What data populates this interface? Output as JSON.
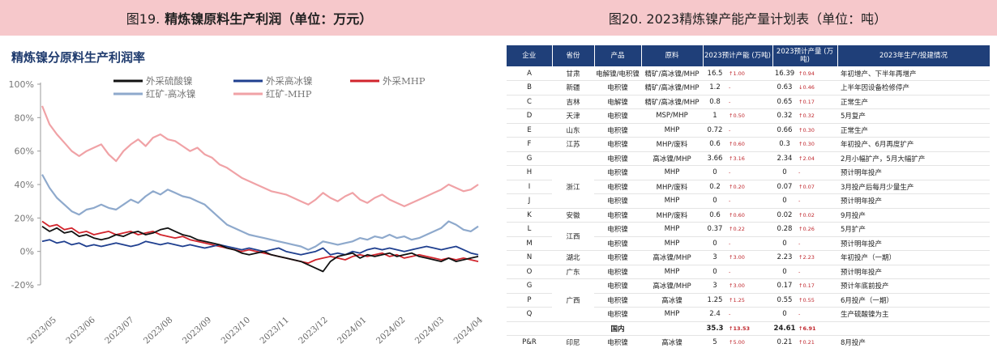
{
  "header_left": {
    "prefix": "图19.",
    "title": "精炼镍原料生产利润（单位：万元）"
  },
  "header_right": {
    "title": "图20.  2023精炼镍产能产量计划表（单位：吨）"
  },
  "chart_data": {
    "type": "line",
    "title": "精炼镍分原料生产利润率",
    "x_ticks": [
      "2023/05",
      "2023/06",
      "2023/07",
      "2023/08",
      "2023/09",
      "2023/10",
      "2023/11",
      "2023/12",
      "2024/01",
      "2024/02",
      "2024/03",
      "2024/04"
    ],
    "y_ticks": [
      "100%",
      "80%",
      "60%",
      "40%",
      "20%",
      "0%",
      "-20%"
    ],
    "ylim": [
      -20,
      100
    ],
    "grid": false,
    "legend_position": "top",
    "series": [
      {
        "name": "外采硫酸镍",
        "color": "#111111",
        "values": [
          15,
          12,
          14,
          11,
          12,
          9,
          10,
          8,
          7,
          8,
          10,
          9,
          11,
          12,
          10,
          11,
          13,
          14,
          12,
          10,
          9,
          7,
          6,
          5,
          4,
          2,
          1,
          -1,
          -2,
          -1,
          0,
          -2,
          -3,
          -4,
          -5,
          -6,
          -8,
          -10,
          -12,
          -6,
          -3,
          -2,
          -1,
          -4,
          -2,
          -3,
          -2,
          -1,
          -3,
          -2,
          -1,
          -3,
          -4,
          -5,
          -6,
          -4,
          -6,
          -5,
          -4,
          -3
        ]
      },
      {
        "name": "外采高冰镍",
        "color": "#1f3f8f",
        "values": [
          6,
          7,
          5,
          6,
          4,
          5,
          3,
          4,
          3,
          4,
          5,
          4,
          3,
          4,
          6,
          5,
          4,
          5,
          4,
          3,
          4,
          3,
          2,
          3,
          4,
          3,
          2,
          1,
          2,
          1,
          0,
          1,
          2,
          0,
          -1,
          -2,
          -1,
          0,
          2,
          -2,
          -1,
          -2,
          0,
          -1,
          1,
          2,
          1,
          2,
          1,
          0,
          1,
          2,
          3,
          2,
          1,
          2,
          3,
          1,
          -1,
          -2
        ]
      },
      {
        "name": "外采MHP",
        "color": "#d1242c",
        "values": [
          18,
          15,
          16,
          13,
          14,
          11,
          12,
          10,
          11,
          12,
          10,
          11,
          12,
          10,
          11,
          12,
          10,
          9,
          8,
          9,
          7,
          6,
          5,
          4,
          3,
          2,
          1,
          0,
          1,
          0,
          -1,
          -2,
          -3,
          -4,
          -5,
          -6,
          -7,
          -5,
          -4,
          -3,
          -4,
          -5,
          -3,
          -2,
          -3,
          -2,
          -1,
          -3,
          -2,
          -4,
          -3,
          -2,
          -3,
          -4,
          -5,
          -4,
          -5,
          -4,
          -5,
          -6
        ]
      },
      {
        "name": "红矿-高冰镍",
        "color": "#8ea9cc",
        "values": [
          46,
          38,
          32,
          28,
          24,
          22,
          25,
          26,
          28,
          26,
          25,
          28,
          31,
          29,
          33,
          36,
          34,
          37,
          35,
          33,
          32,
          30,
          28,
          24,
          20,
          16,
          14,
          12,
          10,
          9,
          8,
          7,
          6,
          5,
          4,
          3,
          1,
          3,
          6,
          5,
          4,
          5,
          6,
          8,
          7,
          9,
          8,
          10,
          8,
          9,
          7,
          8,
          10,
          12,
          14,
          18,
          16,
          13,
          12,
          15
        ]
      },
      {
        "name": "红矿-MHP",
        "color": "#f0a2a6",
        "values": [
          87,
          76,
          70,
          65,
          60,
          57,
          60,
          62,
          64,
          58,
          54,
          60,
          64,
          67,
          63,
          68,
          70,
          67,
          66,
          63,
          60,
          62,
          58,
          56,
          52,
          50,
          47,
          44,
          42,
          40,
          38,
          36,
          35,
          34,
          32,
          30,
          28,
          31,
          35,
          32,
          30,
          33,
          35,
          31,
          29,
          32,
          34,
          31,
          29,
          27,
          29,
          31,
          33,
          35,
          37,
          40,
          38,
          36,
          37,
          40
        ]
      }
    ]
  },
  "table": {
    "columns": [
      "企业",
      "省份",
      "产品",
      "原料",
      "2023预计产能\n(万吨)",
      "2023预计产量\n(万吨)",
      "2023年生产/投建情况"
    ],
    "rows": [
      {
        "company": "A",
        "province": "甘肃",
        "product": "电解镍/电积镍",
        "material": "精矿/高冰镍/MHP",
        "capacity": "16.5",
        "cap_chg": "↑1.00",
        "output": "16.39",
        "out_chg": "↑0.94",
        "status": "年初增产、下半年再增产"
      },
      {
        "company": "B",
        "province": "新疆",
        "product": "电积镍",
        "material": "精矿/高冰镍/MHP",
        "capacity": "1.2",
        "cap_chg": "-",
        "output": "0.63",
        "out_chg": "↓0.46",
        "status": "上半年因设备检修停产"
      },
      {
        "company": "C",
        "province": "吉林",
        "product": "电解镍",
        "material": "精矿/高冰镍/MHP",
        "capacity": "0.8",
        "cap_chg": "-",
        "output": "0.65",
        "out_chg": "↑0.17",
        "status": "正常生产"
      },
      {
        "company": "D",
        "province": "天津",
        "product": "电积镍",
        "material": "MSP/MHP",
        "capacity": "1",
        "cap_chg": "↑0.50",
        "output": "0.32",
        "out_chg": "↑0.32",
        "status": "5月复产"
      },
      {
        "company": "E",
        "province": "山东",
        "product": "电积镍",
        "material": "MHP",
        "capacity": "0.72",
        "cap_chg": "-",
        "output": "0.66",
        "out_chg": "↑0.30",
        "status": "正常生产"
      },
      {
        "company": "F",
        "province": "江苏",
        "product": "电积镍",
        "material": "MHP/废料",
        "capacity": "0.6",
        "cap_chg": "↑0.60",
        "output": "0.3",
        "out_chg": "↑0.30",
        "status": "年初投产、6月再度扩产"
      },
      {
        "company": "G",
        "province": "",
        "product": "电积镍",
        "material": "高冰镍/MHP",
        "capacity": "3.66",
        "cap_chg": "↑3.16",
        "output": "2.34",
        "out_chg": "↑2.04",
        "status": "2月小幅扩产，5月大幅扩产"
      },
      {
        "company": "H",
        "province": "浙江",
        "product": "电积镍",
        "material": "MHP",
        "capacity": "0",
        "cap_chg": "-",
        "output": "0",
        "out_chg": "-",
        "status": "预计明年投产"
      },
      {
        "company": "I",
        "province": "",
        "product": "电积镍",
        "material": "MHP/废料",
        "capacity": "0.2",
        "cap_chg": "↑0.20",
        "output": "0.07",
        "out_chg": "↑0.07",
        "status": "3月投产后每月少量生产"
      },
      {
        "company": "J",
        "province": "",
        "product": "电积镍",
        "material": "MHP",
        "capacity": "0",
        "cap_chg": "-",
        "output": "0",
        "out_chg": "-",
        "status": "预计明年投产"
      },
      {
        "company": "K",
        "province": "安徽",
        "product": "电积镍",
        "material": "MHP/废料",
        "capacity": "0.6",
        "cap_chg": "↑0.60",
        "output": "0.02",
        "out_chg": "↑0.02",
        "status": "9月投产"
      },
      {
        "company": "L",
        "province": "江西",
        "product": "电积镍",
        "material": "MHP",
        "capacity": "0.37",
        "cap_chg": "↑0.22",
        "output": "0.28",
        "out_chg": "↑0.26",
        "status": "5月扩产"
      },
      {
        "company": "M",
        "province": "",
        "product": "电积镍",
        "material": "MHP",
        "capacity": "0",
        "cap_chg": "-",
        "output": "0",
        "out_chg": "-",
        "status": "预计明年投产"
      },
      {
        "company": "N",
        "province": "湖北",
        "product": "电积镍",
        "material": "高冰镍/MHP",
        "capacity": "3",
        "cap_chg": "↑3.00",
        "output": "2.23",
        "out_chg": "↑2.23",
        "status": "年初投产（一期）"
      },
      {
        "company": "O",
        "province": "广东",
        "product": "电积镍",
        "material": "MHP",
        "capacity": "0",
        "cap_chg": "-",
        "output": "0",
        "out_chg": "-",
        "status": "预计明年投产"
      },
      {
        "company": "G",
        "province": "",
        "product": "电积镍",
        "material": "高冰镍/MHP",
        "capacity": "3",
        "cap_chg": "↑3.00",
        "output": "0.17",
        "out_chg": "↑0.17",
        "status": "预计年底前投产"
      },
      {
        "company": "P",
        "province": "广西",
        "product": "电积镍",
        "material": "高冰镍",
        "capacity": "1.25",
        "cap_chg": "↑1.25",
        "output": "0.55",
        "out_chg": "↑0.55",
        "status": "6月投产（一期）"
      },
      {
        "company": "Q",
        "province": "",
        "product": "电积镍",
        "material": "MHP",
        "capacity": "2.4",
        "cap_chg": "-",
        "output": "0",
        "out_chg": "-",
        "status": "生产硫酸镍为主"
      },
      {
        "company": "",
        "province": "",
        "product": "国内",
        "material": "",
        "capacity": "35.3",
        "cap_chg": "↑13.53",
        "output": "24.61",
        "out_chg": "↑6.91",
        "status": "",
        "total": true
      },
      {
        "company": "P&R",
        "province": "印尼",
        "product": "电积镍",
        "material": "高冰镍",
        "capacity": "5",
        "cap_chg": "↑5.00",
        "output": "0.21",
        "out_chg": "↑0.21",
        "status": "8月投产"
      }
    ]
  }
}
